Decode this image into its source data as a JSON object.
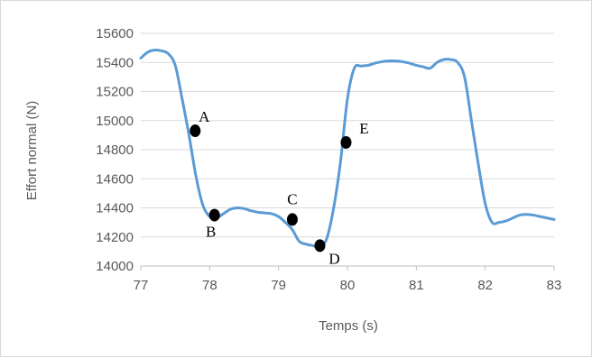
{
  "chart_data": {
    "type": "line",
    "title": "",
    "xlabel": "Temps (s)",
    "ylabel": "Effort normal (N)",
    "xlim": [
      77,
      83
    ],
    "ylim": [
      14000,
      15600
    ],
    "x_ticks": [
      77,
      78,
      79,
      80,
      81,
      82,
      83
    ],
    "y_ticks": [
      14000,
      14200,
      14400,
      14600,
      14800,
      15000,
      15200,
      15400,
      15600
    ],
    "grid": "horizontal",
    "line_color": "#5b9bd5",
    "series": [
      {
        "x": [
          77.0,
          77.1,
          77.2,
          77.3,
          77.4,
          77.5,
          77.6,
          77.7,
          77.8,
          77.9,
          78.0,
          78.1,
          78.2,
          78.3,
          78.4,
          78.5,
          78.6,
          78.7,
          78.8,
          78.9,
          79.0,
          79.1,
          79.2,
          79.3,
          79.4,
          79.5,
          79.6,
          79.7,
          79.8,
          79.9,
          80.0,
          80.1,
          80.2,
          80.3,
          80.4,
          80.5,
          80.6,
          80.7,
          80.8,
          80.9,
          81.0,
          81.1,
          81.2,
          81.3,
          81.4,
          81.5,
          81.6,
          81.7,
          81.8,
          81.9,
          82.0,
          82.1,
          82.2,
          82.3,
          82.4,
          82.5,
          82.6,
          82.7,
          82.8,
          82.9,
          83.0
        ],
        "y": [
          15430,
          15470,
          15485,
          15480,
          15460,
          15380,
          15150,
          14900,
          14620,
          14420,
          14340,
          14330,
          14360,
          14390,
          14400,
          14395,
          14380,
          14370,
          14365,
          14360,
          14340,
          14300,
          14250,
          14170,
          14150,
          14140,
          14130,
          14190,
          14400,
          14720,
          15150,
          15360,
          15375,
          15380,
          15395,
          15405,
          15410,
          15410,
          15405,
          15395,
          15380,
          15370,
          15360,
          15400,
          15420,
          15420,
          15400,
          15300,
          15000,
          14700,
          14430,
          14300,
          14300,
          14310,
          14330,
          14350,
          14355,
          14350,
          14340,
          14330,
          14320
        ]
      }
    ],
    "points": [
      {
        "label": "A",
        "x": 77.79,
        "y": 14930
      },
      {
        "label": "B",
        "x": 78.07,
        "y": 14350
      },
      {
        "label": "C",
        "x": 79.2,
        "y": 14320
      },
      {
        "label": "D",
        "x": 79.6,
        "y": 14140
      },
      {
        "label": "E",
        "x": 79.98,
        "y": 14850
      }
    ]
  }
}
